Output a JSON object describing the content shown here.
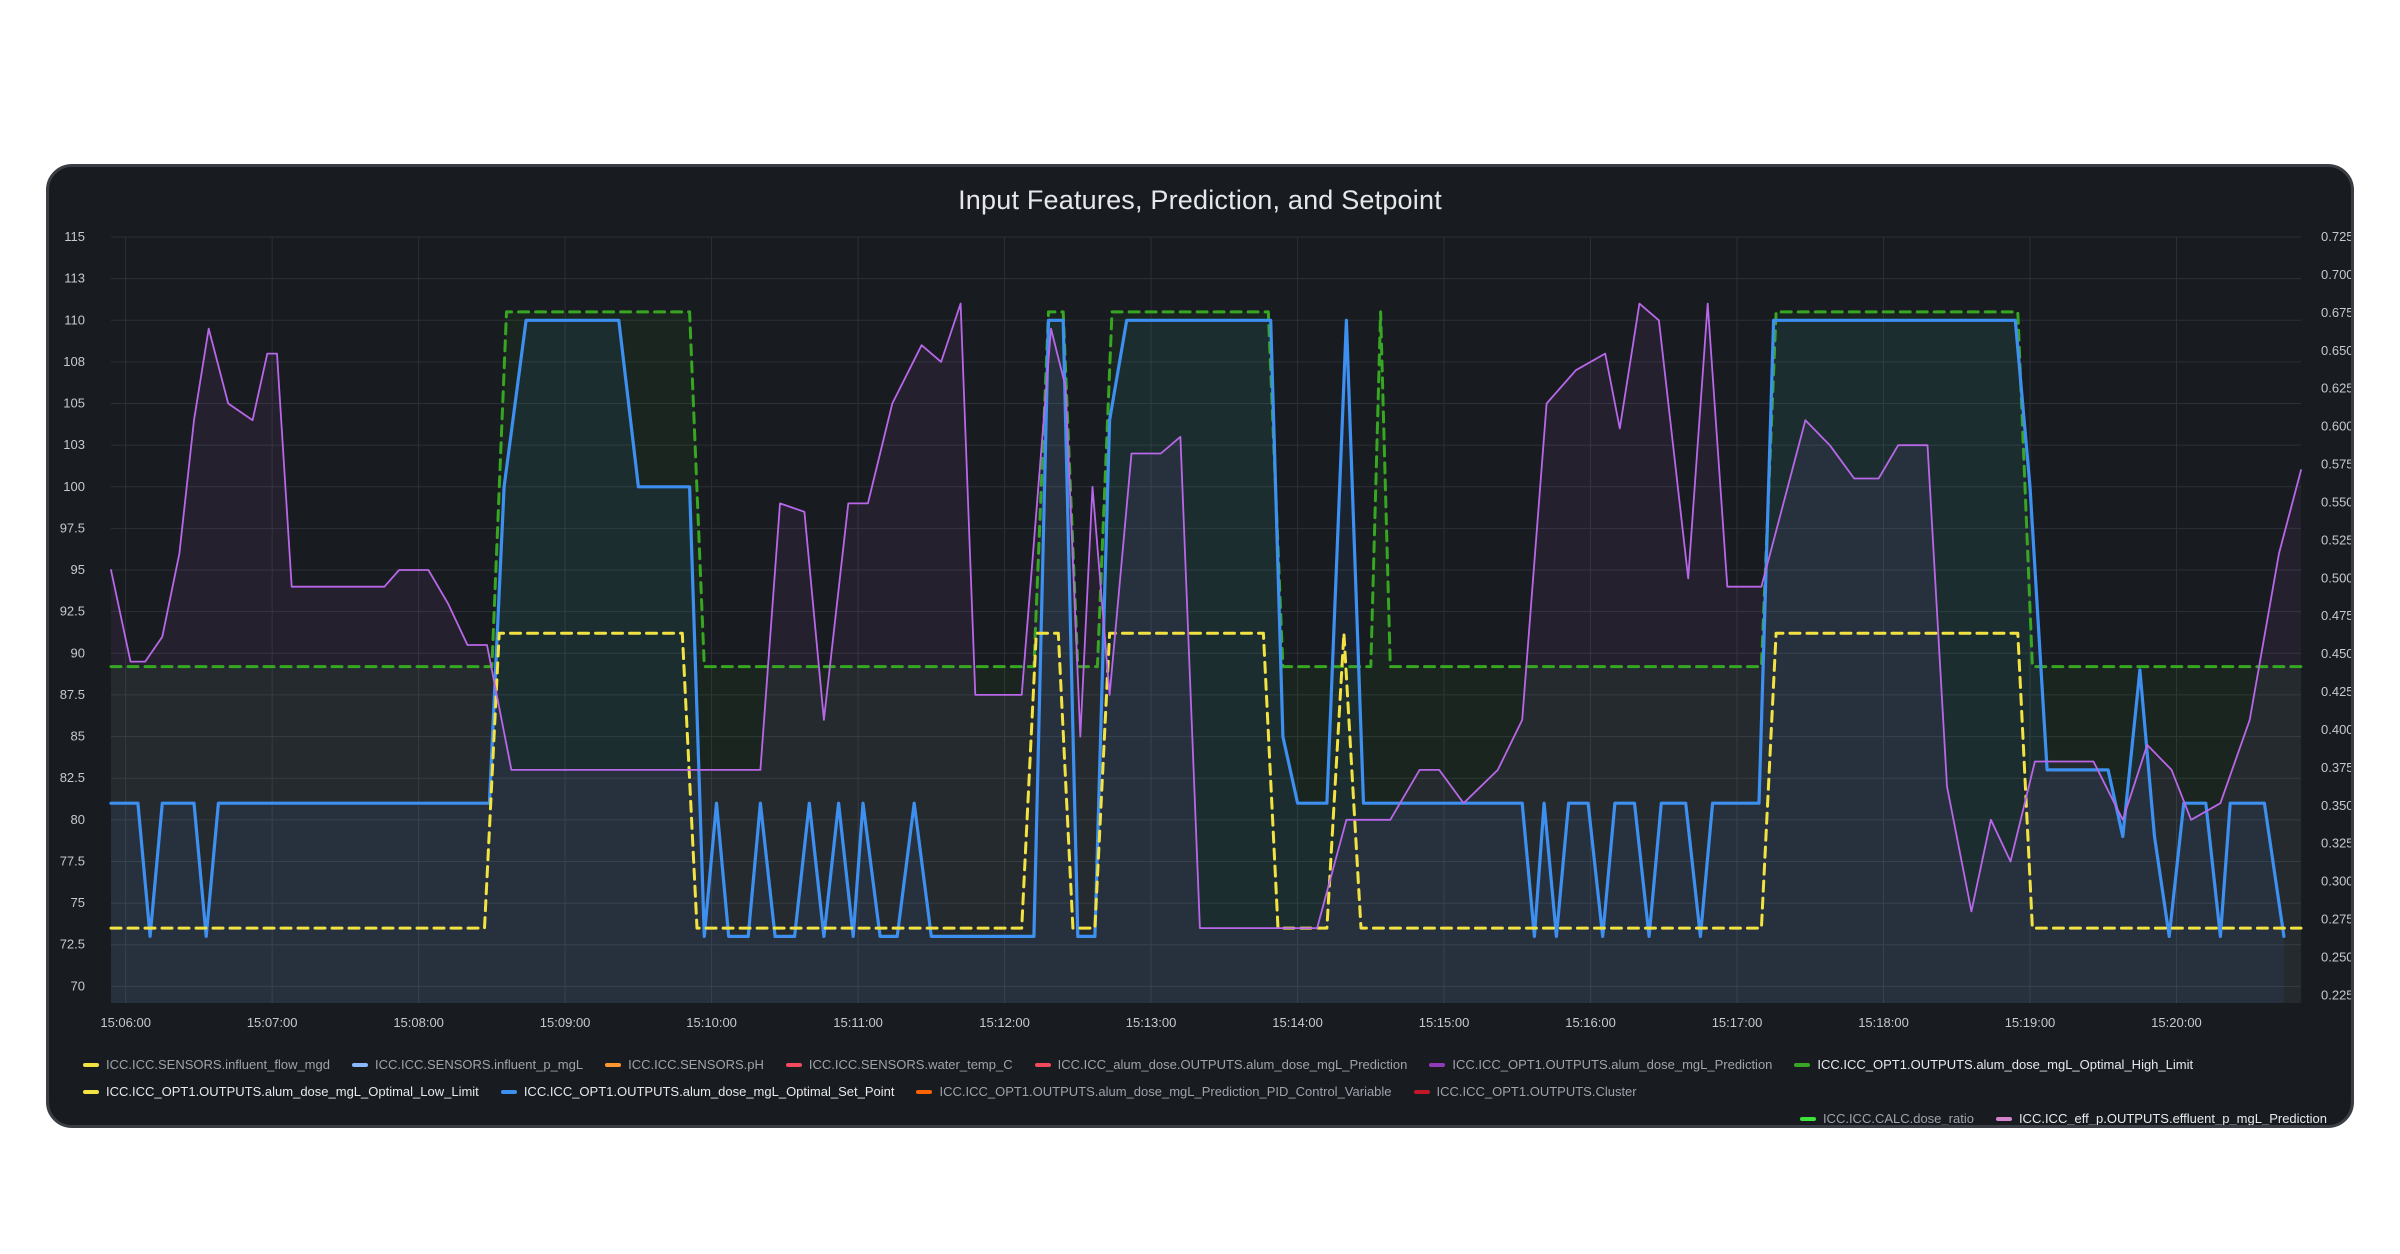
{
  "chart_data": {
    "type": "line",
    "title": "Input Features, Prediction, and Setpoint",
    "x_ticks": [
      "15:06:00",
      "15:07:00",
      "15:08:00",
      "15:09:00",
      "15:10:00",
      "15:11:00",
      "15:12:00",
      "15:13:00",
      "15:14:00",
      "15:15:00",
      "15:16:00",
      "15:17:00",
      "15:18:00",
      "15:19:00",
      "15:20:00"
    ],
    "x_range": [
      "15:05:54",
      "15:20:51"
    ],
    "y_left": {
      "ylim": [
        69,
        115
      ],
      "ticks": [
        {
          "v": 115,
          "label": "115"
        },
        {
          "v": 112.5,
          "label": "113"
        },
        {
          "v": 110,
          "label": "110"
        },
        {
          "v": 107.5,
          "label": "108"
        },
        {
          "v": 105,
          "label": "105"
        },
        {
          "v": 102.5,
          "label": "103"
        },
        {
          "v": 100,
          "label": "100"
        },
        {
          "v": 97.5,
          "label": "97.5"
        },
        {
          "v": 95,
          "label": "95"
        },
        {
          "v": 92.5,
          "label": "92.5"
        },
        {
          "v": 90,
          "label": "90"
        },
        {
          "v": 87.5,
          "label": "87.5"
        },
        {
          "v": 85,
          "label": "85"
        },
        {
          "v": 82.5,
          "label": "82.5"
        },
        {
          "v": 80,
          "label": "80"
        },
        {
          "v": 77.5,
          "label": "77.5"
        },
        {
          "v": 75,
          "label": "75"
        },
        {
          "v": 72.5,
          "label": "72.5"
        },
        {
          "v": 70,
          "label": "70"
        }
      ]
    },
    "y_right": {
      "ylim": [
        0.22,
        0.725
      ],
      "ticks": [
        "0.725",
        "0.700",
        "0.675",
        "0.650",
        "0.625",
        "0.600",
        "0.575",
        "0.550",
        "0.525",
        "0.500",
        "0.475",
        "0.450",
        "0.425",
        "0.400",
        "0.375",
        "0.350",
        "0.325",
        "0.300",
        "0.275",
        "0.250",
        "0.225"
      ]
    },
    "series": [
      {
        "name": "ICC.ICC_OPT1.OUTPUTS.alum_dose_mgL_Optimal_High_Limit",
        "color": "#37a622",
        "dash": true,
        "axis": "left",
        "fill": true,
        "points": [
          [
            "15:05:54",
            89.2
          ],
          [
            "15:08:30",
            89.2
          ],
          [
            "15:08:36",
            110.5
          ],
          [
            "15:09:51",
            110.5
          ],
          [
            "15:09:57",
            89.2
          ],
          [
            "15:12:12",
            89.2
          ],
          [
            "15:12:18",
            110.5
          ],
          [
            "15:12:24",
            110.5
          ],
          [
            "15:12:30",
            89.2
          ],
          [
            "15:12:38",
            89.2
          ],
          [
            "15:12:44",
            110.5
          ],
          [
            "15:13:48",
            110.5
          ],
          [
            "15:13:54",
            89.2
          ],
          [
            "15:14:30",
            89.2
          ],
          [
            "15:14:34",
            110.5
          ],
          [
            "15:14:38",
            89.2
          ],
          [
            "15:17:10",
            89.2
          ],
          [
            "15:17:16",
            110.5
          ],
          [
            "15:18:55",
            110.5
          ],
          [
            "15:19:01",
            89.2
          ],
          [
            "15:20:51",
            89.2
          ]
        ]
      },
      {
        "name": "ICC.ICC_OPT1.OUTPUTS.alum_dose_mgL_Optimal_Set_Point",
        "color": "#3d8ff0",
        "dash": false,
        "axis": "left",
        "fill": true,
        "points": [
          [
            "15:05:54",
            81
          ],
          [
            "15:06:05",
            81
          ],
          [
            "15:06:10",
            73
          ],
          [
            "15:06:15",
            81
          ],
          [
            "15:06:28",
            81
          ],
          [
            "15:06:33",
            73
          ],
          [
            "15:06:38",
            81
          ],
          [
            "15:08:29",
            81
          ],
          [
            "15:08:35",
            100
          ],
          [
            "15:08:44",
            110
          ],
          [
            "15:09:22",
            110
          ],
          [
            "15:09:30",
            100
          ],
          [
            "15:09:51",
            100
          ],
          [
            "15:09:57",
            73
          ],
          [
            "15:10:02",
            81
          ],
          [
            "15:10:07",
            73
          ],
          [
            "15:10:15",
            73
          ],
          [
            "15:10:20",
            81
          ],
          [
            "15:10:26",
            73
          ],
          [
            "15:10:34",
            73
          ],
          [
            "15:10:40",
            81
          ],
          [
            "15:10:46",
            73
          ],
          [
            "15:10:52",
            81
          ],
          [
            "15:10:58",
            73
          ],
          [
            "15:11:02",
            81
          ],
          [
            "15:11:09",
            73
          ],
          [
            "15:11:16",
            73
          ],
          [
            "15:11:23",
            81
          ],
          [
            "15:11:30",
            73
          ],
          [
            "15:12:12",
            73
          ],
          [
            "15:12:18",
            110
          ],
          [
            "15:12:24",
            110
          ],
          [
            "15:12:30",
            73
          ],
          [
            "15:12:37",
            73
          ],
          [
            "15:12:43",
            104
          ],
          [
            "15:12:50",
            110
          ],
          [
            "15:13:49",
            110
          ],
          [
            "15:13:54",
            85
          ],
          [
            "15:14:00",
            81
          ],
          [
            "15:14:12",
            81
          ],
          [
            "15:14:20",
            110
          ],
          [
            "15:14:27",
            81
          ],
          [
            "15:14:34",
            81
          ],
          [
            "15:15:32",
            81
          ],
          [
            "15:15:37",
            73
          ],
          [
            "15:15:41",
            81
          ],
          [
            "15:15:46",
            73
          ],
          [
            "15:15:51",
            81
          ],
          [
            "15:15:59",
            81
          ],
          [
            "15:16:05",
            73
          ],
          [
            "15:16:10",
            81
          ],
          [
            "15:16:18",
            81
          ],
          [
            "15:16:24",
            73
          ],
          [
            "15:16:29",
            81
          ],
          [
            "15:16:39",
            81
          ],
          [
            "15:16:45",
            73
          ],
          [
            "15:16:50",
            81
          ],
          [
            "15:17:09",
            81
          ],
          [
            "15:17:15",
            110
          ],
          [
            "15:18:54",
            110
          ],
          [
            "15:19:00",
            100
          ],
          [
            "15:19:07",
            83
          ],
          [
            "15:19:32",
            83
          ],
          [
            "15:19:38",
            79
          ],
          [
            "15:19:45",
            89
          ],
          [
            "15:19:51",
            79
          ],
          [
            "15:19:57",
            73
          ],
          [
            "15:20:03",
            81
          ],
          [
            "15:20:12",
            81
          ],
          [
            "15:20:18",
            73
          ],
          [
            "15:20:22",
            81
          ],
          [
            "15:20:36",
            81
          ],
          [
            "15:20:44",
            73
          ]
        ]
      },
      {
        "name": "ICC.ICC_OPT1.OUTPUTS.alum_dose_mgL_Optimal_Low_Limit",
        "color": "#f2e342",
        "dash": true,
        "axis": "left",
        "fill": false,
        "points": [
          [
            "15:05:54",
            73.5
          ],
          [
            "15:08:27",
            73.5
          ],
          [
            "15:08:33",
            91.2
          ],
          [
            "15:09:48",
            91.2
          ],
          [
            "15:09:54",
            73.5
          ],
          [
            "15:12:07",
            73.5
          ],
          [
            "15:12:13",
            91.2
          ],
          [
            "15:12:22",
            91.2
          ],
          [
            "15:12:28",
            73.5
          ],
          [
            "15:12:37",
            73.5
          ],
          [
            "15:12:43",
            91.2
          ],
          [
            "15:13:46",
            91.2
          ],
          [
            "15:13:52",
            73.5
          ],
          [
            "15:14:12",
            73.5
          ],
          [
            "15:14:19",
            91.2
          ],
          [
            "15:14:26",
            73.5
          ],
          [
            "15:17:10",
            73.5
          ],
          [
            "15:17:16",
            91.2
          ],
          [
            "15:18:55",
            91.2
          ],
          [
            "15:19:01",
            73.5
          ],
          [
            "15:20:51",
            73.5
          ]
        ]
      },
      {
        "name": "ICC.ICC_eff_p.OUTPUTS.effluent_p_mgL_Prediction",
        "color": "#b867e8",
        "dash": false,
        "axis": "left",
        "fill": true,
        "points": [
          [
            "15:05:54",
            95
          ],
          [
            "15:06:02",
            89.5
          ],
          [
            "15:06:08",
            89.5
          ],
          [
            "15:06:15",
            91
          ],
          [
            "15:06:22",
            96
          ],
          [
            "15:06:28",
            104
          ],
          [
            "15:06:34",
            109.5
          ],
          [
            "15:06:42",
            105
          ],
          [
            "15:06:52",
            104
          ],
          [
            "15:06:58",
            108
          ],
          [
            "15:07:02",
            108
          ],
          [
            "15:07:08",
            94
          ],
          [
            "15:07:12",
            94
          ],
          [
            "15:07:46",
            94
          ],
          [
            "15:07:52",
            95
          ],
          [
            "15:08:04",
            95
          ],
          [
            "15:08:12",
            93
          ],
          [
            "15:08:20",
            90.5
          ],
          [
            "15:08:28",
            90.5
          ],
          [
            "15:08:38",
            83
          ],
          [
            "15:09:10",
            83
          ],
          [
            "15:10:20",
            83
          ],
          [
            "15:10:28",
            99
          ],
          [
            "15:10:38",
            98.5
          ],
          [
            "15:10:46",
            86
          ],
          [
            "15:10:56",
            99
          ],
          [
            "15:11:04",
            99
          ],
          [
            "15:11:14",
            105
          ],
          [
            "15:11:26",
            108.5
          ],
          [
            "15:11:34",
            107.5
          ],
          [
            "15:11:42",
            111
          ],
          [
            "15:11:48",
            87.5
          ],
          [
            "15:12:07",
            87.5
          ],
          [
            "15:12:19",
            109.5
          ],
          [
            "15:12:25",
            106
          ],
          [
            "15:12:31",
            85
          ],
          [
            "15:12:36",
            100
          ],
          [
            "15:12:43",
            87.5
          ],
          [
            "15:12:52",
            102
          ],
          [
            "15:13:04",
            102
          ],
          [
            "15:13:12",
            103
          ],
          [
            "15:13:20",
            73.5
          ],
          [
            "15:13:52",
            73.5
          ],
          [
            "15:14:08",
            73.5
          ],
          [
            "15:14:20",
            80
          ],
          [
            "15:14:38",
            80
          ],
          [
            "15:14:50",
            83
          ],
          [
            "15:14:58",
            83
          ],
          [
            "15:15:08",
            81
          ],
          [
            "15:15:22",
            83
          ],
          [
            "15:15:32",
            86
          ],
          [
            "15:15:42",
            105
          ],
          [
            "15:15:54",
            107
          ],
          [
            "15:16:06",
            108
          ],
          [
            "15:16:12",
            103.5
          ],
          [
            "15:16:20",
            111
          ],
          [
            "15:16:28",
            110
          ],
          [
            "15:16:40",
            94.5
          ],
          [
            "15:16:48",
            111
          ],
          [
            "15:16:56",
            94
          ],
          [
            "15:17:02",
            94
          ],
          [
            "15:17:10",
            94
          ],
          [
            "15:17:28",
            104
          ],
          [
            "15:17:38",
            102.5
          ],
          [
            "15:17:48",
            100.5
          ],
          [
            "15:17:58",
            100.5
          ],
          [
            "15:18:06",
            102.5
          ],
          [
            "15:18:18",
            102.5
          ],
          [
            "15:18:26",
            82
          ],
          [
            "15:18:36",
            74.5
          ],
          [
            "15:18:44",
            80
          ],
          [
            "15:18:52",
            77.5
          ],
          [
            "15:19:02",
            83.5
          ],
          [
            "15:19:08",
            83.5
          ],
          [
            "15:19:14",
            83.5
          ],
          [
            "15:19:26",
            83.5
          ],
          [
            "15:19:38",
            80
          ],
          [
            "15:19:48",
            84.5
          ],
          [
            "15:19:58",
            83
          ],
          [
            "15:20:06",
            80
          ],
          [
            "15:20:18",
            81
          ],
          [
            "15:20:30",
            86
          ],
          [
            "15:20:42",
            96
          ],
          [
            "15:20:51",
            101
          ]
        ]
      }
    ],
    "legend": [
      {
        "name": "ICC.ICC.SENSORS.influent_flow_mgd",
        "color": "#f2e342",
        "active": false
      },
      {
        "name": "ICC.ICC.SENSORS.influent_p_mgL",
        "color": "#8ab8ff",
        "active": false
      },
      {
        "name": "ICC.ICC.SENSORS.pH",
        "color": "#ff9830",
        "active": false
      },
      {
        "name": "ICC.ICC.SENSORS.water_temp_C",
        "color": "#f2495c",
        "active": false
      },
      {
        "name": "ICC.ICC_alum_dose.OUTPUTS.alum_dose_mgL_Prediction",
        "color": "#f2495c",
        "active": false
      },
      {
        "name": "ICC.ICC_OPT1.OUTPUTS.alum_dose_mgL_Prediction",
        "color": "#8f3bb8",
        "active": false
      },
      {
        "name": "ICC.ICC_OPT1.OUTPUTS.alum_dose_mgL_Optimal_High_Limit",
        "color": "#37a622",
        "active": true
      },
      {
        "name": "ICC.ICC_OPT1.OUTPUTS.alum_dose_mgL_Optimal_Low_Limit",
        "color": "#f2e342",
        "active": true
      },
      {
        "name": "ICC.ICC_OPT1.OUTPUTS.alum_dose_mgL_Optimal_Set_Point",
        "color": "#3d8ff0",
        "active": true
      },
      {
        "name": "ICC.ICC_OPT1.OUTPUTS.alum_dose_mgL_Prediction_PID_Control_Variable",
        "color": "#fa6400",
        "active": false
      },
      {
        "name": "ICC.ICC_OPT1.OUTPUTS.Cluster",
        "color": "#c4162a",
        "active": false
      },
      {
        "name": "ICC.ICC.CALC.dose_ratio",
        "color": "#3be33b",
        "active": false
      },
      {
        "name": "ICC.ICC_eff_p.OUTPUTS.effluent_p_mgL_Prediction",
        "color": "#d683ce",
        "active": true
      }
    ]
  }
}
